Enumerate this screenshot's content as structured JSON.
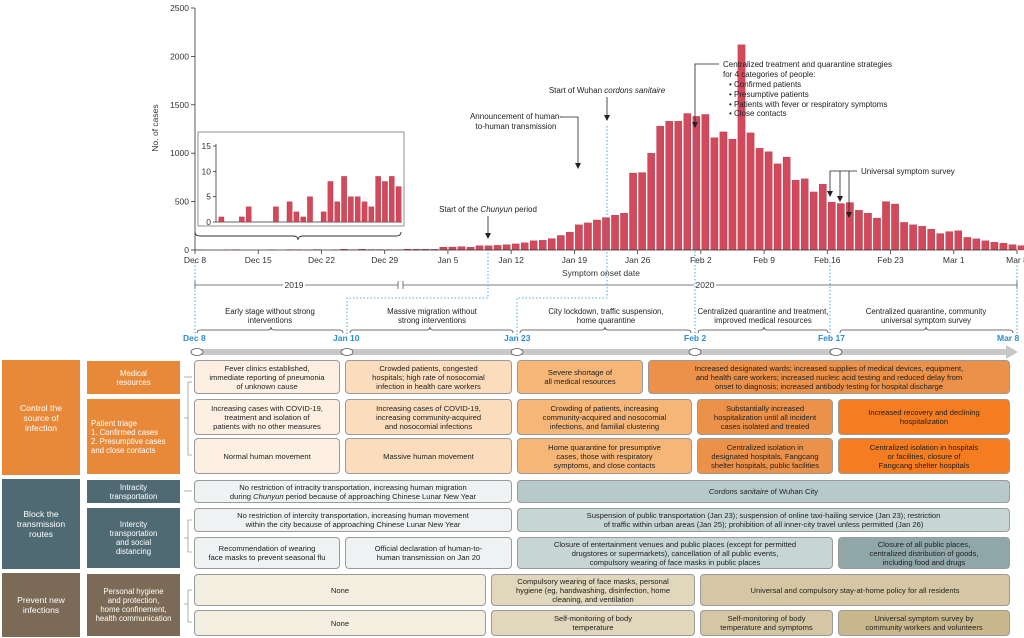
{
  "chart_data": {
    "type": "bar",
    "ylabel": "No. of cases",
    "xlabel": "Symptom onset date",
    "ylim": [
      0,
      2500
    ],
    "yticks": [
      0,
      500,
      1000,
      1500,
      2000,
      2500
    ],
    "start_date": "Dec 8",
    "xtick_labels": [
      "Dec 8",
      "Dec 15",
      "Dec 22",
      "Dec 29",
      "Jan 5",
      "Jan 12",
      "Jan 19",
      "Jan 26",
      "Feb 2",
      "Feb 9",
      "Feb 16",
      "Feb 23",
      "Mar 1",
      "Mar 8"
    ],
    "years": [
      "2019",
      "2020"
    ],
    "values": [
      1,
      0,
      0,
      1,
      3,
      0,
      0,
      0,
      3,
      0,
      4,
      2,
      1,
      5,
      0,
      2,
      8,
      4,
      9,
      5,
      5,
      4,
      3,
      9,
      8,
      9,
      7,
      30,
      31,
      35,
      29,
      45,
      44,
      48,
      55,
      63,
      75,
      95,
      100,
      118,
      150,
      185,
      260,
      280,
      310,
      335,
      360,
      380,
      795,
      800,
      1000,
      1280,
      1330,
      1330,
      1410,
      1380,
      1400,
      1160,
      1220,
      1145,
      2120,
      1210,
      1050,
      1015,
      890,
      960,
      720,
      735,
      600,
      680,
      495,
      480,
      490,
      410,
      380,
      330,
      500,
      475,
      285,
      260,
      245,
      215,
      170,
      190,
      200,
      130,
      115,
      95,
      80,
      70,
      55,
      45,
      35,
      25,
      22,
      15,
      10,
      5
    ],
    "inset": {
      "ylim": [
        0,
        15
      ],
      "yticks": [
        0,
        5,
        10,
        15
      ],
      "values": [
        1,
        0,
        0,
        1,
        3,
        0,
        0,
        0,
        3,
        0,
        4,
        2,
        1,
        5,
        0,
        2,
        8,
        4,
        9,
        5,
        5,
        4,
        3,
        9,
        8,
        9,
        7
      ]
    },
    "annotations": [
      {
        "text_before": "Start of the ",
        "text_italic": "Chunyun",
        "text_after": " period",
        "date": "Jan 10"
      },
      {
        "lines": [
          "Announcement of human-",
          "to-human transmission"
        ],
        "date": "Jan 20"
      },
      {
        "text_before": "Start of Wuhan ",
        "text_italic": "cordons sanitaire",
        "text_after": "",
        "date": "Jan 23"
      },
      {
        "lines": [
          "Centralized treatment and quarantine strategies",
          "for 4 categories of people:",
          "• Confirmed patients",
          "• Presumptive patients",
          "• Patients with fever or respiratory symptoms",
          "• Close contacts"
        ],
        "date": "Feb 2"
      },
      {
        "lines": [
          "Universal symptom survey"
        ],
        "dates": [
          "Feb 16",
          "Feb 17",
          "Feb 18"
        ]
      }
    ]
  },
  "timeline": {
    "dates": [
      "Dec 8",
      "Jan 10",
      "Jan 23",
      "Feb 2",
      "Feb 17",
      "Mar 8"
    ],
    "stages": [
      {
        "text": "Early stage without strong\ninterventions"
      },
      {
        "text": "Massive migration without\nstrong interventions"
      },
      {
        "text": "City lockdown, traffic suspension,\nhome quarantine"
      },
      {
        "text": "Centralized quarantine and treatment,\nimproved medical resources"
      },
      {
        "text": "Centralized quarantine, community\nuniversal symptom survey"
      }
    ]
  },
  "table": {
    "categories": {
      "control": "Control the\nsource of\ninfection",
      "block": "Block the\ntransmission\nroutes",
      "prevent": "Prevent new\ninfections"
    },
    "subcategories": {
      "medical": "Medical\nresources",
      "triage": "Patient triage\n1. Confirmed cases\n2. Presumptive cases\n    and close contacts",
      "intracity": "Intracity\ntransportation",
      "intercity": "Intercity\ntransportation\nand social\ndistancing",
      "hygiene": "Personal hygiene\nand protection,\nhome confinement,\nhealth communication"
    },
    "cells": {
      "med1": "Fever clinics established,\nimmediate reporting of pneumonia\nof unknown cause",
      "med2": "Crowded patients, congested\nhospitals; high rate of nosocomial\ninfection in health care workers",
      "med3": "Severe shortage of\nall medical resources",
      "med4": "Increased designated wards; increased supplies of medical devices, equipment,\nand health care workers; increased nucleic acid testing and reduced delay from\nonset to diagnosis; increased antibody testing for hospital discharge",
      "tri1": "Increasing cases with COVID-19,\ntreatment and isolation of\npatients with no other measures",
      "tri2": "Increasing cases of COVID-19,\nincreasing community-acquired\nand nosocomial infections",
      "tri3": "Crowding of patients, increasing\ncommunity-acquired and nosocomial\ninfections, and familial clustering",
      "tri4": "Substantially increased\nhospitalization until all incident\ncases isolated and treated",
      "tri5": "Increased recovery and declining\nhospitalization",
      "mov1": "Normal human movement",
      "mov2": "Massive human movement",
      "mov3": "Home quarantine for presumptive\ncases, those with respiratory\nsymptoms, and close contacts",
      "mov4": "Centralized isolation in\ndesignated hospitals, Fangcang\nshelter hospitals, public facilities",
      "mov5": "Centralized isolation in hospitals\nor facilities, closure of\nFangcang shelter hospitals",
      "intra1_a": "No restriction of intracity transportation, increasing human migration",
      "intra1_b": "during ",
      "intra1_c": "Chunyun",
      "intra1_d": " period because of approaching Chinese Lunar New Year",
      "intra2_a": "Cordons sanitaire",
      "intra2_b": " of Wuhan City",
      "inter1": "No restriction of intercity transportation, increasing human movement\nwithin the city because of approaching Chinese Lunar New Year",
      "inter2": "Suspension of public transportation (Jan 23); suspension of online taxi-hailing service (Jan 23); restriction\nof traffic within urban areas (Jan 25); prohibition of all inner-city travel unless permitted (Jan 26)",
      "mask1": "Recommendation of wearing\nface masks to prevent seasonal flu",
      "mask2": "Official declaration of human-to-\nhuman transmission on Jan 20",
      "mask3": "Closure of entertainment venues and public places (except for permitted\ndrugstores or supermarkets), cancellation of all public events,\ncompulsory wearing of face masks in public places",
      "mask4": "Closure of all public places,\ncentralized distribution of goods,\nincluding food and drugs",
      "hyg1": "None",
      "hyg2": "Compulsory wearing of face masks, personal\nhygiene (eg, handwashing, disinfection, home\ncleaning, and ventilation",
      "hyg3": "Universal and compulsory stay-at-home policy for all residents",
      "self1": "None",
      "self2": "Self-monitoring of body\ntemperature",
      "self3": "Self-monitoring of body\ntemperature and symptoms",
      "self4": "Universal symptom survey by\ncommunity workers and volunteers"
    }
  },
  "colors": {
    "bar": "#d1495b",
    "control": "#e8893a",
    "block": "#4f6a72",
    "prevent": "#7b6a55",
    "timeline": "#c8c8c8",
    "dates": "#2b8ccf"
  }
}
